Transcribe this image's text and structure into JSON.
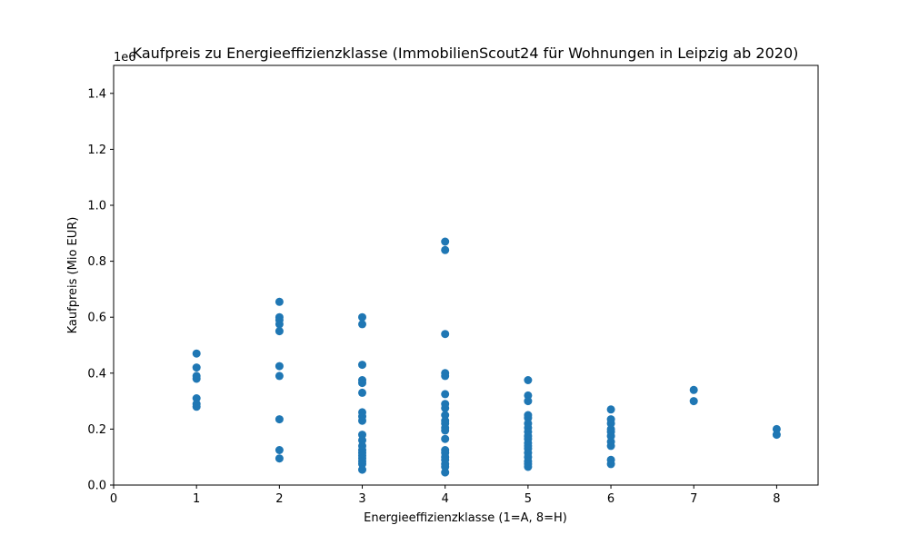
{
  "chart_data": {
    "type": "scatter",
    "title": "Kaufpreis zu Energieeffizienzklasse (ImmobilienScout24 für Wohnungen in Leipzig ab 2020)",
    "xlabel": "Energieeffizienzklasse (1=A, 8=H)",
    "ylabel": "Kaufpreis (Mio EUR)",
    "y_offset_label": "1e6",
    "xlim": [
      0,
      8.5
    ],
    "ylim": [
      0,
      1500000
    ],
    "x_ticks": [
      0,
      1,
      2,
      3,
      4,
      5,
      6,
      7,
      8
    ],
    "x_tick_labels": [
      "0",
      "1",
      "2",
      "3",
      "4",
      "5",
      "6",
      "7",
      "8"
    ],
    "y_ticks": [
      0,
      200000,
      400000,
      600000,
      800000,
      1000000,
      1200000,
      1400000
    ],
    "y_tick_labels": [
      "0.0",
      "0.2",
      "0.4",
      "0.6",
      "0.8",
      "1.0",
      "1.2",
      "1.4"
    ],
    "grid": false,
    "color": "#1f77b4",
    "points": [
      [
        1,
        470000
      ],
      [
        1,
        420000
      ],
      [
        1,
        390000
      ],
      [
        1,
        380000
      ],
      [
        1,
        310000
      ],
      [
        1,
        290000
      ],
      [
        1,
        280000
      ],
      [
        2,
        655000
      ],
      [
        2,
        600000
      ],
      [
        2,
        590000
      ],
      [
        2,
        575000
      ],
      [
        2,
        550000
      ],
      [
        2,
        425000
      ],
      [
        2,
        390000
      ],
      [
        2,
        235000
      ],
      [
        2,
        125000
      ],
      [
        2,
        95000
      ],
      [
        3,
        600000
      ],
      [
        3,
        575000
      ],
      [
        3,
        430000
      ],
      [
        3,
        375000
      ],
      [
        3,
        365000
      ],
      [
        3,
        330000
      ],
      [
        3,
        260000
      ],
      [
        3,
        245000
      ],
      [
        3,
        230000
      ],
      [
        3,
        180000
      ],
      [
        3,
        160000
      ],
      [
        3,
        140000
      ],
      [
        3,
        125000
      ],
      [
        3,
        115000
      ],
      [
        3,
        105000
      ],
      [
        3,
        95000
      ],
      [
        3,
        85000
      ],
      [
        3,
        75000
      ],
      [
        3,
        55000
      ],
      [
        4,
        870000
      ],
      [
        4,
        840000
      ],
      [
        4,
        540000
      ],
      [
        4,
        400000
      ],
      [
        4,
        390000
      ],
      [
        4,
        325000
      ],
      [
        4,
        290000
      ],
      [
        4,
        275000
      ],
      [
        4,
        250000
      ],
      [
        4,
        230000
      ],
      [
        4,
        220000
      ],
      [
        4,
        205000
      ],
      [
        4,
        195000
      ],
      [
        4,
        165000
      ],
      [
        4,
        125000
      ],
      [
        4,
        115000
      ],
      [
        4,
        100000
      ],
      [
        4,
        90000
      ],
      [
        4,
        75000
      ],
      [
        4,
        65000
      ],
      [
        4,
        45000
      ],
      [
        5,
        375000
      ],
      [
        5,
        320000
      ],
      [
        5,
        300000
      ],
      [
        5,
        250000
      ],
      [
        5,
        240000
      ],
      [
        5,
        220000
      ],
      [
        5,
        205000
      ],
      [
        5,
        190000
      ],
      [
        5,
        175000
      ],
      [
        5,
        165000
      ],
      [
        5,
        150000
      ],
      [
        5,
        140000
      ],
      [
        5,
        130000
      ],
      [
        5,
        115000
      ],
      [
        5,
        100000
      ],
      [
        5,
        85000
      ],
      [
        5,
        75000
      ],
      [
        5,
        65000
      ],
      [
        6,
        270000
      ],
      [
        6,
        235000
      ],
      [
        6,
        220000
      ],
      [
        6,
        200000
      ],
      [
        6,
        190000
      ],
      [
        6,
        175000
      ],
      [
        6,
        155000
      ],
      [
        6,
        140000
      ],
      [
        6,
        90000
      ],
      [
        6,
        75000
      ],
      [
        7,
        340000
      ],
      [
        7,
        300000
      ],
      [
        8,
        200000
      ],
      [
        8,
        180000
      ]
    ]
  }
}
